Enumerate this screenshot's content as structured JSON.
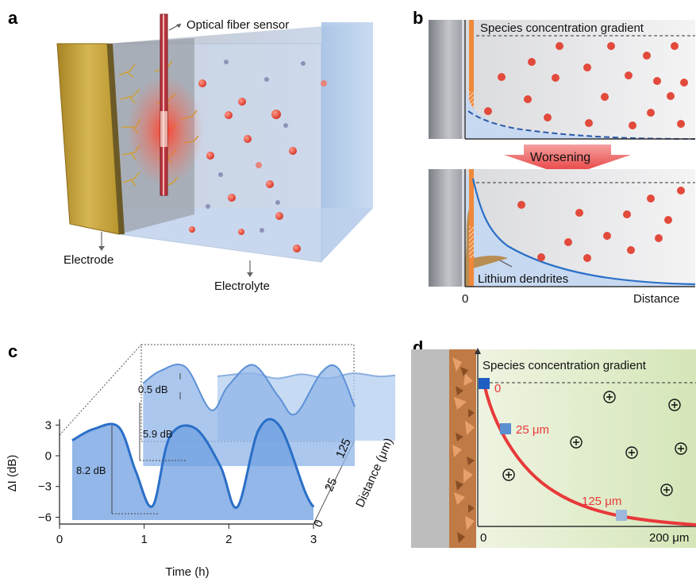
{
  "panels": {
    "a": {
      "letter": "a",
      "fiber_label": "Optical fiber sensor",
      "electrode_label": "Electrode",
      "electrolyte_label": "Electrolyte"
    },
    "b": {
      "letter": "b",
      "gradient_label": "Species concentration gradient",
      "arrow_label": "Worsening",
      "dendrite_label": "Lithium dendrites",
      "x_zero": "0",
      "x_label": "Distance"
    },
    "c": {
      "letter": "c",
      "y_label": "ΔI (dB)",
      "x_label": "Time (h)",
      "depth_label": "Distance (μm)",
      "y_ticks": [
        "3",
        "0",
        "−3",
        "−6"
      ],
      "x_ticks": [
        "0",
        "1",
        "2",
        "3"
      ],
      "depth_ticks": [
        "0",
        "25",
        "125"
      ],
      "annotations": [
        "0.5 dB",
        "5.9 dB",
        "8.2 dB"
      ]
    },
    "d": {
      "letter": "d",
      "gradient_label": "Species concentration gradient",
      "point_labels": [
        "0",
        "25 μm",
        "125 μm"
      ],
      "x_zero": "0",
      "x_end": "200 μm"
    }
  },
  "colors": {
    "electrode": "#c9a640",
    "ion": "#e24a3b",
    "curve_blue": "#2a6fc8",
    "curve_red": "#e8393a",
    "dendrite": "#b8864a"
  },
  "chart_data": {
    "type": "line",
    "xlabel": "Time (h)",
    "ylabel": "ΔI (dB)",
    "zlabel": "Distance (μm)",
    "xlim": [
      0,
      3
    ],
    "ylim": [
      -6,
      3
    ],
    "series": [
      {
        "name": "0",
        "amplitude_db": 8.2,
        "x": [
          0.15,
          0.4,
          0.7,
          0.9,
          1.1,
          1.3,
          1.6,
          1.9,
          2.1,
          2.35,
          2.6,
          2.9,
          3.0
        ],
        "y": [
          1.5,
          2.6,
          2.8,
          -1.5,
          -4.9,
          1.8,
          2.7,
          -1.0,
          -5.0,
          2.5,
          2.9,
          -3.5,
          -5.0
        ]
      },
      {
        "name": "25",
        "amplitude_db": 5.9,
        "x": [
          0.5,
          0.7,
          1.0,
          1.3,
          1.5,
          1.8,
          2.1,
          2.3,
          2.6,
          2.8,
          3.0
        ],
        "y": [
          1.8,
          3.0,
          3.4,
          -0.8,
          1.5,
          3.6,
          0.5,
          -1.2,
          2.8,
          3.3,
          -0.5
        ]
      },
      {
        "name": "125",
        "amplitude_db": 0.5,
        "x": [
          0.9,
          1.3,
          1.6,
          1.9,
          2.2,
          2.5,
          2.8,
          3.0
        ],
        "y": [
          0.0,
          0.3,
          -0.2,
          0.2,
          -0.2,
          0.3,
          0.0,
          0.1
        ]
      }
    ]
  }
}
